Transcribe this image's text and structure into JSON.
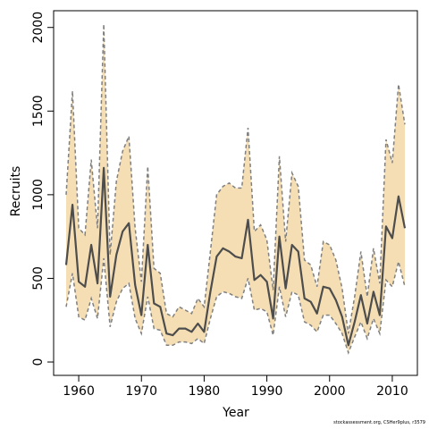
{
  "chart_data": {
    "type": "line",
    "xlabel": "Year",
    "ylabel": "Recruits",
    "xlim": [
      1956,
      2014
    ],
    "ylim": [
      -80,
      2100
    ],
    "x_ticks": [
      1960,
      1970,
      1980,
      1990,
      2000,
      2010
    ],
    "y_ticks": [
      0,
      500,
      1000,
      1500,
      2000
    ],
    "colors": {
      "band": "#f5deb3",
      "bounds": "#808080",
      "estimate": "#4d4d4d"
    },
    "grid": false,
    "x": [
      1958,
      1959,
      1960,
      1961,
      1962,
      1963,
      1964,
      1965,
      1966,
      1967,
      1968,
      1969,
      1970,
      1971,
      1972,
      1973,
      1974,
      1975,
      1976,
      1977,
      1978,
      1979,
      1980,
      1981,
      1982,
      1983,
      1984,
      1985,
      1986,
      1987,
      1988,
      1989,
      1990,
      1991,
      1992,
      1993,
      1994,
      1995,
      1996,
      1997,
      1998,
      1999,
      2000,
      2001,
      2002,
      2003,
      2004,
      2005,
      2006,
      2007,
      2008,
      2009,
      2010,
      2011,
      2012
    ],
    "series": [
      {
        "role": "estimate",
        "values": [
          580,
          940,
          480,
          450,
          700,
          470,
          1160,
          390,
          640,
          780,
          830,
          460,
          280,
          700,
          350,
          330,
          170,
          160,
          200,
          200,
          180,
          230,
          180,
          420,
          630,
          680,
          660,
          630,
          620,
          850,
          490,
          520,
          480,
          260,
          750,
          440,
          700,
          660,
          380,
          360,
          290,
          450,
          440,
          370,
          270,
          100,
          240,
          400,
          230,
          420,
          280,
          810,
          740,
          990,
          800
        ]
      },
      {
        "role": "upper",
        "values": [
          1000,
          1620,
          800,
          760,
          1210,
          800,
          2020,
          640,
          1080,
          1260,
          1350,
          800,
          480,
          1170,
          560,
          530,
          290,
          270,
          330,
          310,
          290,
          380,
          330,
          660,
          1000,
          1050,
          1070,
          1040,
          1040,
          1400,
          780,
          820,
          730,
          430,
          1230,
          720,
          1130,
          1050,
          610,
          580,
          450,
          720,
          700,
          610,
          440,
          170,
          390,
          660,
          390,
          680,
          470,
          1330,
          1190,
          1660,
          1420
        ]
      },
      {
        "role": "lower",
        "values": [
          330,
          530,
          270,
          250,
          380,
          260,
          620,
          210,
          360,
          440,
          470,
          260,
          170,
          390,
          200,
          190,
          100,
          100,
          120,
          120,
          110,
          140,
          110,
          260,
          390,
          420,
          410,
          390,
          380,
          500,
          310,
          320,
          300,
          160,
          450,
          270,
          420,
          400,
          240,
          220,
          180,
          280,
          280,
          230,
          170,
          55,
          150,
          240,
          140,
          260,
          170,
          490,
          450,
          600,
          450
        ]
      }
    ]
  },
  "footnote": "stockassessment.org, CSHer9plus, r3579"
}
